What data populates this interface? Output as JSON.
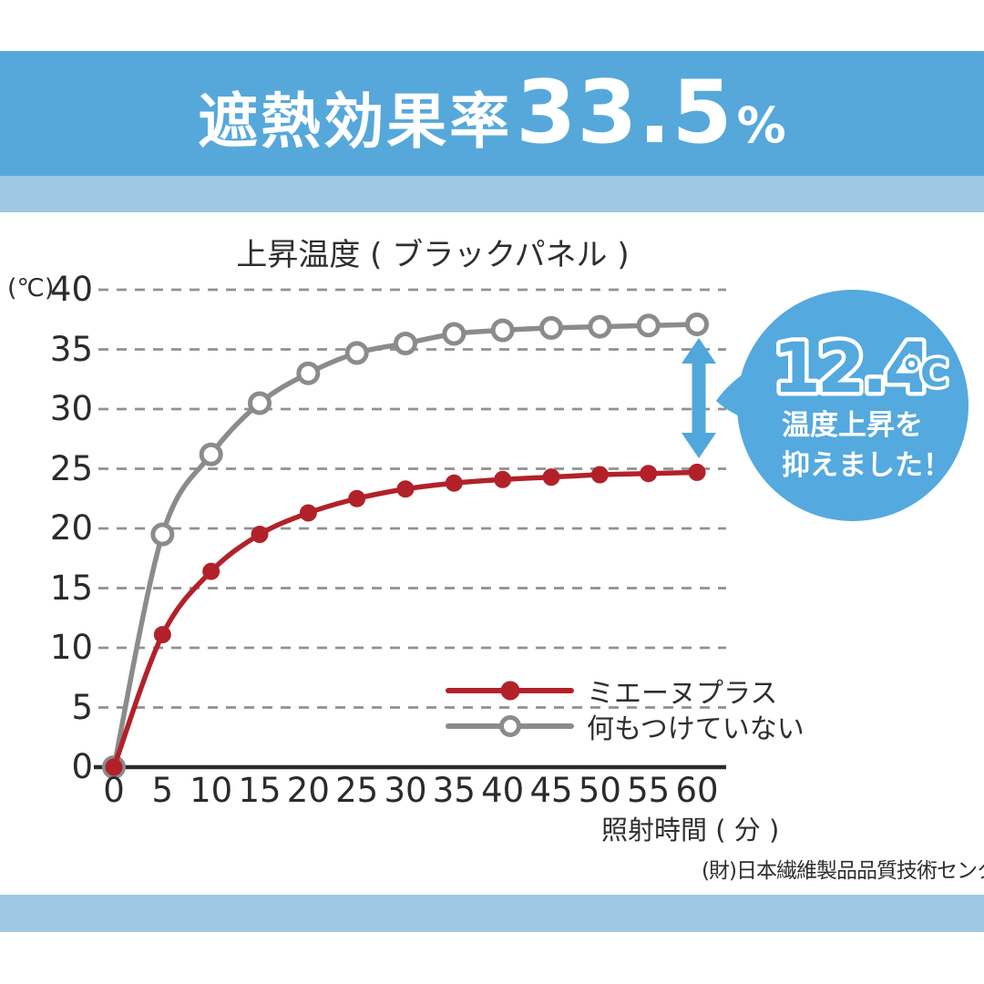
{
  "header": {
    "title_prefix": "遮熱効果率",
    "title_value": "33.5",
    "title_unit": "%"
  },
  "chart_data": {
    "type": "line",
    "title": "上昇温度 ( ブラックパネル )",
    "y_axis_unit": "(℃)",
    "xlabel": "照射時間 ( 分 )",
    "ylabel": "",
    "xlim": [
      0,
      60
    ],
    "ylim": [
      0,
      40
    ],
    "x_ticks": [
      0,
      5,
      10,
      15,
      20,
      25,
      30,
      35,
      40,
      45,
      50,
      55,
      60
    ],
    "y_ticks": [
      0,
      5,
      10,
      15,
      20,
      25,
      30,
      35,
      40
    ],
    "grid": "horizontal-dashed",
    "legend_position": "inside-bottom-right",
    "x": [
      0,
      5,
      10,
      15,
      20,
      25,
      30,
      35,
      40,
      45,
      50,
      55,
      60
    ],
    "series": [
      {
        "name": "ミエーヌプラス",
        "color": "#B2212A",
        "marker": "filled-circle",
        "values": [
          0,
          11.1,
          16.4,
          19.5,
          21.3,
          22.5,
          23.3,
          23.8,
          24.1,
          24.3,
          24.5,
          24.6,
          24.7
        ]
      },
      {
        "name": "何もつけていない",
        "color": "#8B8B8B",
        "marker": "open-circle",
        "values": [
          0,
          19.5,
          26.2,
          30.5,
          33.0,
          34.7,
          35.5,
          36.3,
          36.6,
          36.8,
          36.9,
          37.0,
          37.1
        ]
      }
    ]
  },
  "badge": {
    "value": "12.4",
    "unit": "℃",
    "line1": "温度上昇を",
    "line2": "抑えました！"
  },
  "source_note": "(財)日本繊維製品品質技術センター調べ",
  "colors": {
    "header_blue": "#56A8DB",
    "band_light_blue": "#9EC8E3",
    "badge_blue": "#54A9DE",
    "arrow_blue": "#4FA7DB",
    "series_red": "#B2212A",
    "series_gray": "#8B8B8B",
    "grid_gray": "#919191",
    "axis_dark": "#2b2b2b",
    "text_dark": "#2e2e2e"
  }
}
